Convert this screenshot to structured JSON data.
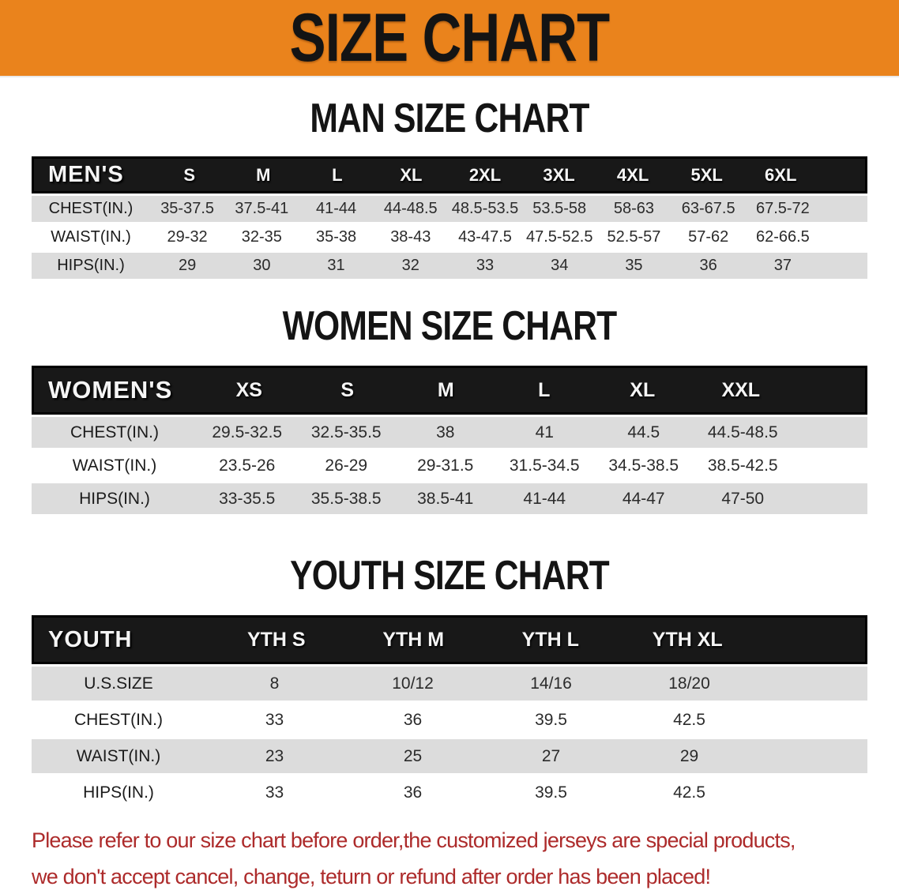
{
  "banner": {
    "title": "SIZE CHART",
    "bg_color": "#EA831C",
    "text_color": "#141414"
  },
  "sections": [
    {
      "heading": "MAN SIZE CHART",
      "table": {
        "label": "MEN'S",
        "columns": [
          "S",
          "M",
          "L",
          "XL",
          "2XL",
          "3XL",
          "4XL",
          "5XL",
          "6XL"
        ],
        "rows": [
          {
            "label": "CHEST(IN.)",
            "values": [
              "35-37.5",
              "37.5-41",
              "41-44",
              "44-48.5",
              "48.5-53.5",
              "53.5-58",
              "58-63",
              "63-67.5",
              "67.5-72"
            ]
          },
          {
            "label": "WAIST(IN.)",
            "values": [
              "29-32",
              "32-35",
              "35-38",
              "38-43",
              "43-47.5",
              "47.5-52.5",
              "52.5-57",
              "57-62",
              "62-66.5"
            ]
          },
          {
            "label": "HIPS(IN.)",
            "values": [
              "29",
              "30",
              "31",
              "32",
              "33",
              "34",
              "35",
              "36",
              "37"
            ]
          }
        ]
      }
    },
    {
      "heading": "WOMEN SIZE CHART",
      "table": {
        "label": "WOMEN'S",
        "columns": [
          "XS",
          "S",
          "M",
          "L",
          "XL",
          "XXL"
        ],
        "rows": [
          {
            "label": "CHEST(IN.)",
            "values": [
              "29.5-32.5",
              "32.5-35.5",
              "38",
              "41",
              "44.5",
              "44.5-48.5"
            ]
          },
          {
            "label": "WAIST(IN.)",
            "values": [
              "23.5-26",
              "26-29",
              "29-31.5",
              "31.5-34.5",
              "34.5-38.5",
              "38.5-42.5"
            ]
          },
          {
            "label": "HIPS(IN.)",
            "values": [
              "33-35.5",
              "35.5-38.5",
              "38.5-41",
              "41-44",
              "44-47",
              "47-50"
            ]
          }
        ]
      }
    },
    {
      "heading": "YOUTH SIZE CHART",
      "table": {
        "label": "YOUTH",
        "columns": [
          "YTH S",
          "YTH M",
          "YTH L",
          "YTH XL"
        ],
        "rows": [
          {
            "label": "U.S.SIZE",
            "values": [
              "8",
              "10/12",
              "14/16",
              "18/20"
            ]
          },
          {
            "label": "CHEST(IN.)",
            "values": [
              "33",
              "36",
              "39.5",
              "42.5"
            ]
          },
          {
            "label": "WAIST(IN.)",
            "values": [
              "23",
              "25",
              "27",
              "29"
            ]
          },
          {
            "label": "HIPS(IN.)",
            "values": [
              "33",
              "36",
              "39.5",
              "42.5"
            ]
          }
        ]
      }
    }
  ],
  "disclaimer": {
    "line1": "Please refer to our size chart before order,the customized jerseys are special products,",
    "line2": "we don't accept cancel, change, teturn or refund after order has been placed!",
    "color": "#AD2B2B"
  }
}
